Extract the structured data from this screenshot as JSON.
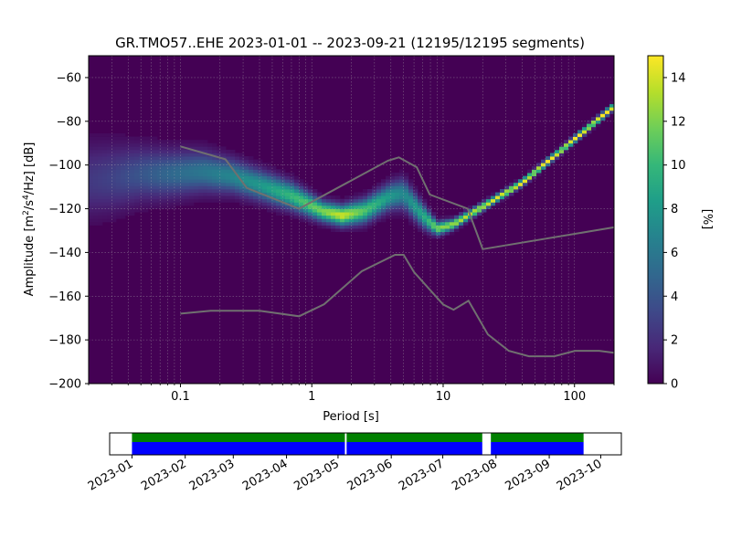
{
  "chart_data": [
    {
      "type": "heatmap",
      "title": "GR.TMO57..EHE   2023-01-01 -- 2023-09-21  (12195/12195 segments)",
      "xlabel": "Period [s]",
      "ylabel_parts": [
        "Amplitude [m",
        "2",
        "/s",
        "4",
        "/Hz] [dB]"
      ],
      "x_scale": "log",
      "xlim": [
        0.02,
        200
      ],
      "ylim": [
        -200,
        -50
      ],
      "x_ticks": [
        {
          "value": 0.1,
          "label": "0.1"
        },
        {
          "value": 1,
          "label": "1"
        },
        {
          "value": 10,
          "label": "10"
        },
        {
          "value": 100,
          "label": "100"
        }
      ],
      "y_ticks": [
        {
          "value": -60,
          "label": "−60"
        },
        {
          "value": -80,
          "label": "−80"
        },
        {
          "value": -100,
          "label": "−100"
        },
        {
          "value": -120,
          "label": "−120"
        },
        {
          "value": -140,
          "label": "−140"
        },
        {
          "value": -160,
          "label": "−160"
        },
        {
          "value": -180,
          "label": "−180"
        },
        {
          "value": -200,
          "label": "−200"
        }
      ],
      "grid": true,
      "background_color": "#440154",
      "colorbar": {
        "label": "[%]",
        "range": [
          0,
          15
        ],
        "ticks": [
          {
            "value": 0,
            "label": "0"
          },
          {
            "value": 2,
            "label": "2"
          },
          {
            "value": 4,
            "label": "4"
          },
          {
            "value": 6,
            "label": "6"
          },
          {
            "value": 8,
            "label": "8"
          },
          {
            "value": 10,
            "label": "10"
          },
          {
            "value": 12,
            "label": "12"
          },
          {
            "value": 14,
            "label": "14"
          }
        ],
        "colormap": [
          "#440154",
          "#482878",
          "#3e4989",
          "#31688e",
          "#26828e",
          "#1f9e89",
          "#35b779",
          "#6ece58",
          "#b5de2b",
          "#fde725"
        ]
      },
      "psd_ridge": [
        {
          "period": 0.02,
          "db": -107,
          "spread": 11,
          "peak": 2.5
        },
        {
          "period": 0.03,
          "db": -106,
          "spread": 10,
          "peak": 3
        },
        {
          "period": 0.05,
          "db": -104,
          "spread": 8,
          "peak": 4
        },
        {
          "period": 0.08,
          "db": -104,
          "spread": 7,
          "peak": 5
        },
        {
          "period": 0.15,
          "db": -103,
          "spread": 6,
          "peak": 6
        },
        {
          "period": 0.25,
          "db": -105,
          "spread": 5,
          "peak": 7
        },
        {
          "period": 0.4,
          "db": -109,
          "spread": 4.5,
          "peak": 8
        },
        {
          "period": 0.7,
          "db": -114,
          "spread": 4,
          "peak": 10
        },
        {
          "period": 1.2,
          "db": -121,
          "spread": 3,
          "peak": 12
        },
        {
          "period": 1.7,
          "db": -123,
          "spread": 3,
          "peak": 14
        },
        {
          "period": 2.5,
          "db": -121,
          "spread": 3.5,
          "peak": 11
        },
        {
          "period": 4,
          "db": -114,
          "spread": 4,
          "peak": 8
        },
        {
          "period": 5,
          "db": -113,
          "spread": 4.5,
          "peak": 7
        },
        {
          "period": 7,
          "db": -123,
          "spread": 3.5,
          "peak": 9
        },
        {
          "period": 9,
          "db": -129,
          "spread": 2,
          "peak": 12
        },
        {
          "period": 12,
          "db": -127,
          "spread": 1.5,
          "peak": 13
        },
        {
          "period": 20,
          "db": -119,
          "spread": 1.2,
          "peak": 14
        },
        {
          "period": 40,
          "db": -108,
          "spread": 1,
          "peak": 15
        },
        {
          "period": 80,
          "db": -93,
          "spread": 1,
          "peak": 15
        },
        {
          "period": 200,
          "db": -73,
          "spread": 1,
          "peak": 15
        }
      ],
      "noise_models": {
        "color": "#707070",
        "series": [
          {
            "period": [
              0.1,
              0.22,
              0.32,
              0.8,
              3.8,
              4.6,
              6.3,
              7.9,
              15.4,
              20,
              354.8
            ],
            "db": [
              -91.5,
              -97.4,
              -110.5,
              -120,
              -98,
              -96.5,
              -101,
              -113.5,
              -120,
              -138.5,
              -126
            ]
          },
          {
            "period": [
              0.1,
              0.17,
              0.4,
              0.8,
              1.24,
              2.4,
              4.3,
              5.0,
              6.0,
              10.0,
              12.0,
              15.6,
              21.9,
              31.6,
              45.0,
              70.0,
              101.0,
              154.0,
              328.0
            ],
            "db": [
              -168,
              -166.7,
              -166.7,
              -169.2,
              -163.7,
              -148.6,
              -141.1,
              -141.1,
              -149,
              -163.8,
              -166.2,
              -162.1,
              -177.5,
              -185,
              -187.5,
              -187.5,
              -185,
              -185,
              -187.5
            ]
          }
        ]
      }
    },
    {
      "type": "timeline",
      "x_range": [
        "2022-12-19",
        "2023-10-13"
      ],
      "x_ticks": [
        "2023-01",
        "2023-02",
        "2023-03",
        "2023-04",
        "2023-05",
        "2023-06",
        "2023-07",
        "2023-08",
        "2023-09",
        "2023-10"
      ],
      "coverage_colors": {
        "top": "#008000",
        "bottom": "#0000ff"
      },
      "segments": [
        {
          "start": "2023-01-01",
          "end": "2023-05-05"
        },
        {
          "start": "2023-05-06",
          "end": "2023-07-24"
        },
        {
          "start": "2023-07-29",
          "end": "2023-09-21"
        }
      ]
    }
  ]
}
